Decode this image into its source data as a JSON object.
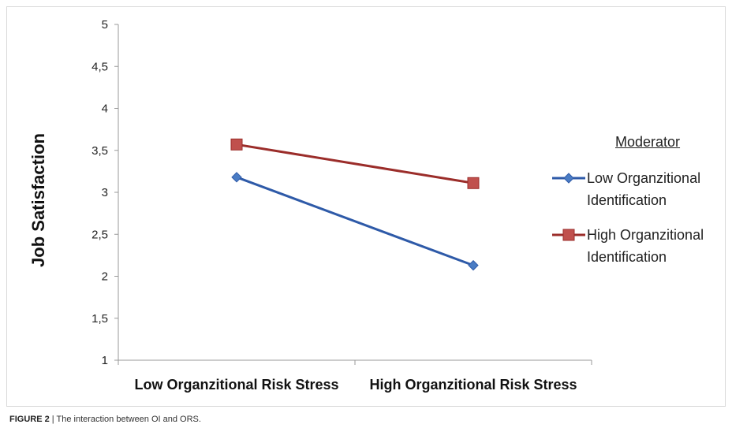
{
  "chart_data": {
    "type": "line",
    "categories": [
      "Low Organzitional Risk Stress",
      "High Organzitional Risk Stress"
    ],
    "series": [
      {
        "name": "Low Organzitional Identification",
        "values": [
          3.18,
          2.13
        ],
        "color": "#2e5aa8",
        "marker": "diamond",
        "marker_color": "#4a7cc4"
      },
      {
        "name": "High Organzitional Identification",
        "values": [
          3.57,
          3.11
        ],
        "color": "#9b2d2a",
        "marker": "square",
        "marker_color": "#c0504d"
      }
    ],
    "ylabel": "Job Satisfaction",
    "xlabel": "",
    "ylim": [
      1,
      5
    ],
    "yticks": [
      "1",
      "1,5",
      "2",
      "2,5",
      "3",
      "3,5",
      "4",
      "4,5",
      "5"
    ],
    "legend_title": "Moderator",
    "legend_placement": "right",
    "grid": false
  },
  "caption": {
    "label": "FIGURE 2",
    "separator": "|",
    "text": "The interaction between OI and ORS."
  }
}
